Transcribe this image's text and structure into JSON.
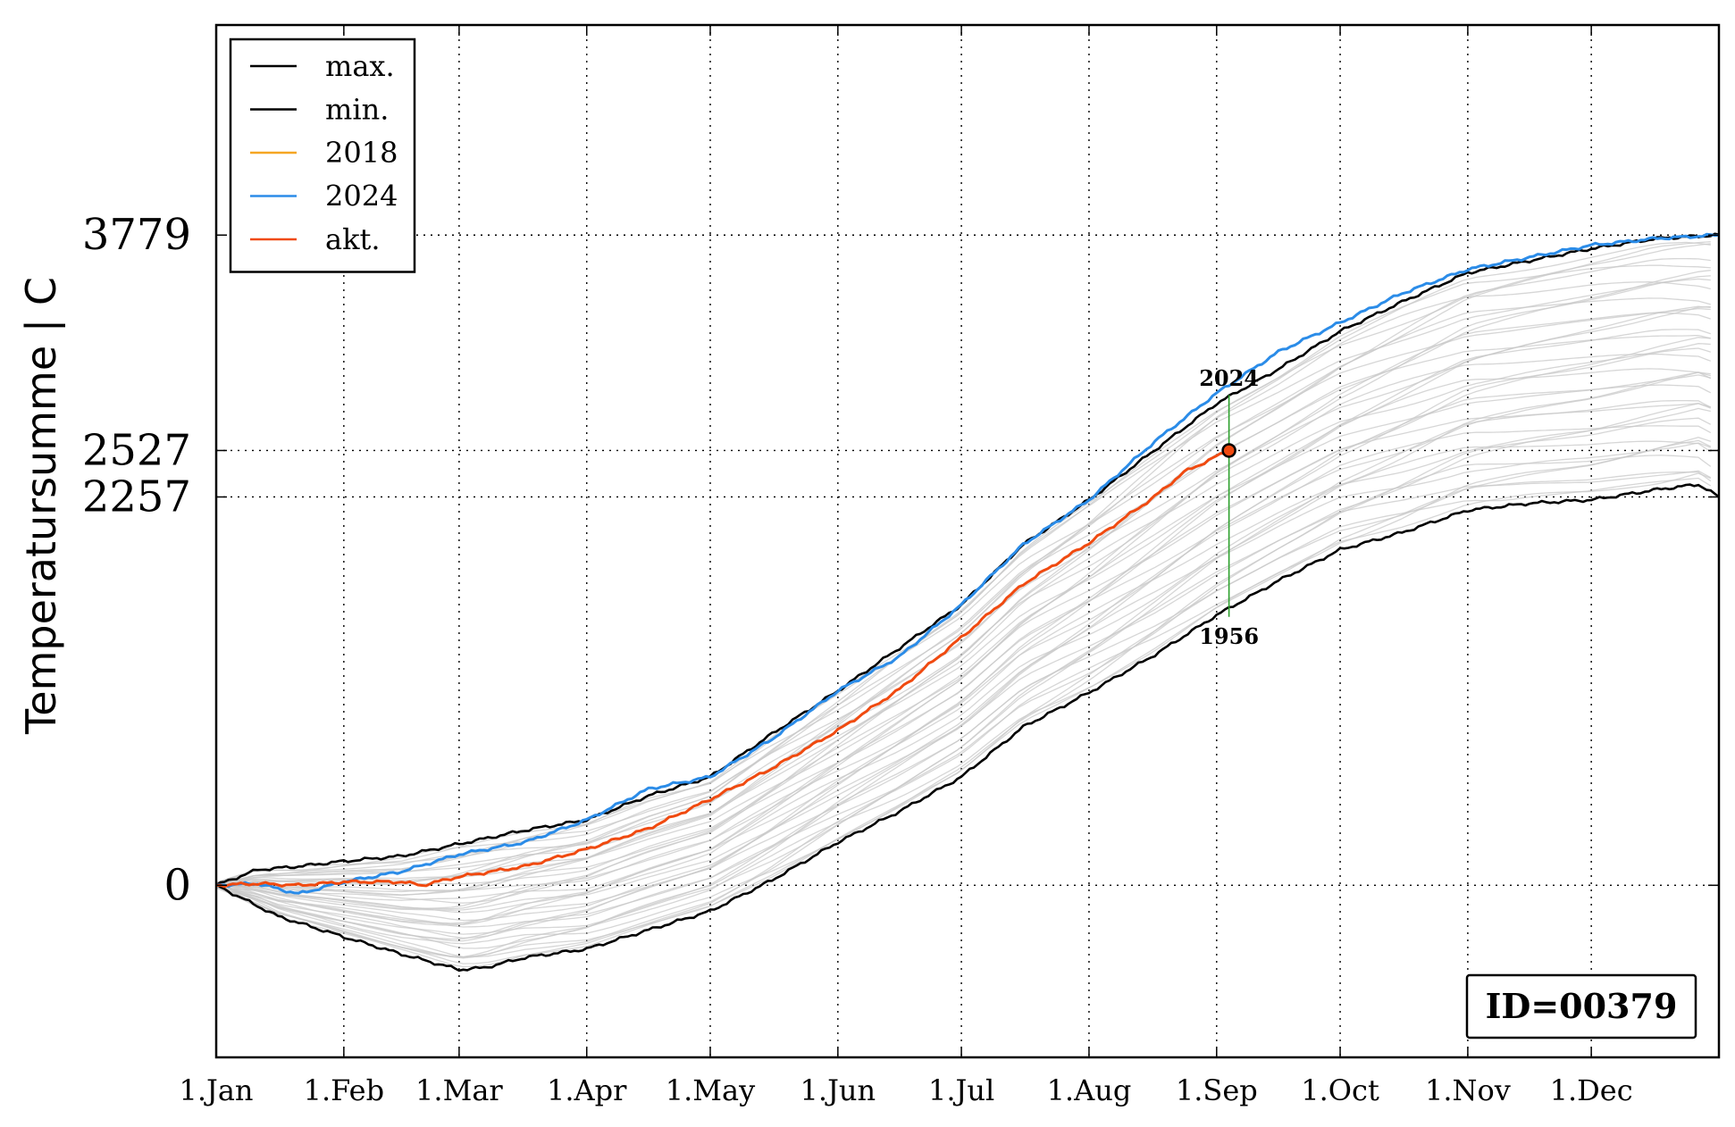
{
  "chart_data": {
    "type": "line",
    "ylabel": "Temperatursumme | C",
    "xlabel": "",
    "x_ticks": [
      "1.Jan",
      "1.Feb",
      "1.Mar",
      "1.Apr",
      "1.May",
      "1.Jun",
      "1.Jul",
      "1.Aug",
      "1.Sep",
      "1.Oct",
      "1.Nov",
      "1.Dec"
    ],
    "x_tick_days": [
      0,
      31,
      59,
      90,
      120,
      151,
      181,
      212,
      243,
      273,
      304,
      334
    ],
    "xlim_days": [
      0,
      365
    ],
    "y_ticks": [
      0,
      2257,
      2527,
      3779
    ],
    "y_tick_labels": [
      "0",
      "2257",
      "2527",
      "3779"
    ],
    "ylim": [
      -1000,
      5000
    ],
    "grid": "dotted",
    "legend": {
      "position": "top-left",
      "entries": [
        {
          "label": "max.",
          "color": "#000000"
        },
        {
          "label": "min.",
          "color": "#000000"
        },
        {
          "label": "2018",
          "color": "#f5a623"
        },
        {
          "label": "2024",
          "color": "#2b8ce8"
        },
        {
          "label": "akt.",
          "color": "#f04a10"
        }
      ]
    },
    "series": [
      {
        "name": "max.",
        "color": "#000000",
        "days": [
          0,
          10,
          20,
          31,
          45,
          59,
          75,
          90,
          105,
          120,
          135,
          151,
          166,
          181,
          196,
          212,
          228,
          243,
          258,
          273,
          288,
          304,
          319,
          334,
          350,
          365
        ],
        "values": [
          0,
          90,
          110,
          140,
          170,
          240,
          320,
          380,
          520,
          630,
          880,
          1130,
          1380,
          1630,
          1980,
          2240,
          2530,
          2800,
          3000,
          3220,
          3390,
          3560,
          3630,
          3700,
          3760,
          3779
        ]
      },
      {
        "name": "min.",
        "color": "#000000",
        "days": [
          0,
          15,
          31,
          45,
          59,
          65,
          75,
          90,
          105,
          120,
          135,
          151,
          166,
          181,
          196,
          212,
          228,
          243,
          258,
          273,
          288,
          304,
          319,
          334,
          350,
          360,
          365
        ],
        "values": [
          0,
          -180,
          -300,
          -400,
          -490,
          -480,
          -420,
          -370,
          -260,
          -150,
          30,
          250,
          430,
          630,
          920,
          1120,
          1340,
          1570,
          1770,
          1950,
          2050,
          2180,
          2220,
          2240,
          2300,
          2330,
          2257
        ]
      },
      {
        "name": "2024",
        "color": "#2b8ce8",
        "days": [
          0,
          10,
          20,
          31,
          45,
          59,
          75,
          90,
          105,
          120,
          135,
          151,
          166,
          181,
          196,
          212,
          228,
          243,
          258,
          273,
          288,
          304,
          319,
          334,
          350,
          365
        ],
        "values": [
          0,
          10,
          -50,
          20,
          80,
          180,
          250,
          380,
          560,
          630,
          850,
          1130,
          1330,
          1630,
          1980,
          2240,
          2580,
          2860,
          3100,
          3270,
          3440,
          3580,
          3650,
          3720,
          3760,
          3779
        ]
      },
      {
        "name": "akt.",
        "color": "#f04a10",
        "days": [
          0,
          10,
          20,
          31,
          45,
          50,
          59,
          75,
          90,
          105,
          120,
          135,
          151,
          166,
          181,
          196,
          212,
          228,
          235,
          246
        ],
        "values": [
          0,
          10,
          0,
          20,
          20,
          0,
          50,
          110,
          210,
          330,
          500,
          680,
          900,
          1140,
          1440,
          1750,
          1990,
          2260,
          2400,
          2527
        ]
      }
    ],
    "background_series_color": "#c8c8c8",
    "current_point": {
      "day": 246,
      "value": 2527,
      "color": "#f04a10"
    },
    "range_annotation": {
      "day": 246,
      "upper_value": 2850,
      "lower_value": 1560,
      "upper_label": "2024",
      "lower_label": "1956",
      "color": "#2ca02c"
    },
    "id_box": "ID=00379"
  }
}
